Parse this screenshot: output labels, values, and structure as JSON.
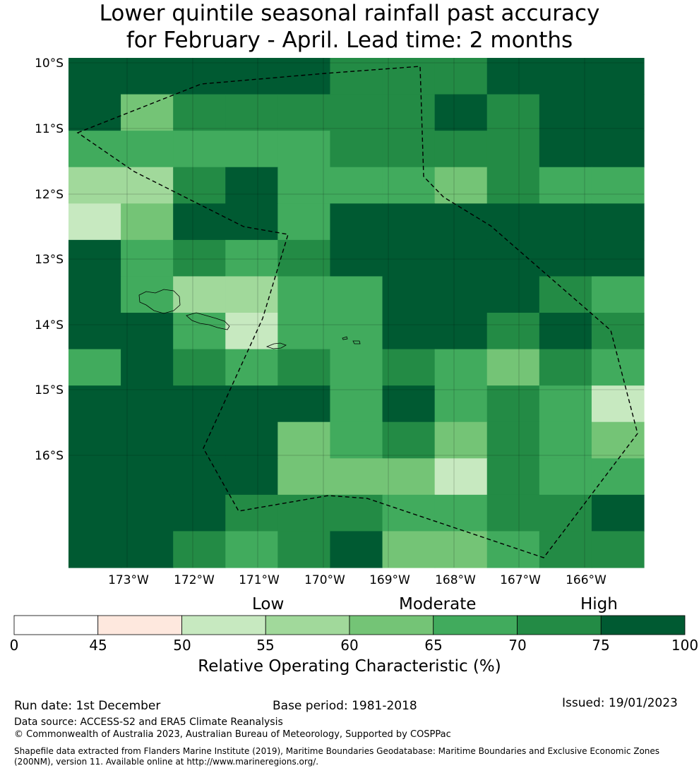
{
  "title": {
    "line1": "Lower quintile seasonal rainfall past accuracy",
    "line2": "for February - April. Lead time: 2 months"
  },
  "map": {
    "lat_labels": [
      "10°S",
      "11°S",
      "12°S",
      "13°S",
      "14°S",
      "15°S",
      "16°S"
    ],
    "lon_labels": [
      "173°W",
      "172°W",
      "171°W",
      "170°W",
      "169°W",
      "168°W",
      "167°W",
      "166°W"
    ],
    "grid": [
      [
        90,
        90,
        90,
        90,
        90,
        72,
        72,
        72,
        90,
        90,
        90
      ],
      [
        90,
        62,
        72,
        72,
        72,
        72,
        72,
        90,
        72,
        90,
        90
      ],
      [
        67,
        67,
        67,
        67,
        67,
        72,
        72,
        72,
        72,
        90,
        90
      ],
      [
        58,
        58,
        72,
        90,
        67,
        67,
        67,
        62,
        72,
        67,
        67
      ],
      [
        53,
        62,
        90,
        90,
        67,
        90,
        90,
        90,
        90,
        90,
        90
      ],
      [
        90,
        67,
        72,
        67,
        72,
        90,
        90,
        90,
        90,
        90,
        90
      ],
      [
        90,
        67,
        58,
        58,
        67,
        67,
        90,
        90,
        90,
        72,
        67
      ],
      [
        90,
        90,
        67,
        53,
        67,
        67,
        90,
        90,
        72,
        90,
        72
      ],
      [
        67,
        90,
        72,
        67,
        72,
        67,
        72,
        67,
        62,
        72,
        67
      ],
      [
        90,
        90,
        90,
        90,
        90,
        67,
        90,
        67,
        72,
        67,
        53
      ],
      [
        90,
        90,
        90,
        90,
        62,
        67,
        72,
        62,
        72,
        67,
        62
      ],
      [
        90,
        90,
        90,
        90,
        62,
        62,
        62,
        53,
        72,
        67,
        67
      ],
      [
        90,
        90,
        90,
        72,
        72,
        72,
        67,
        67,
        72,
        72,
        90
      ],
      [
        90,
        90,
        72,
        67,
        72,
        90,
        62,
        62,
        67,
        72,
        72
      ]
    ]
  },
  "colorbar": {
    "category_labels": [
      "Low",
      "Moderate",
      "High"
    ],
    "ticks": [
      "0",
      "45",
      "50",
      "55",
      "60",
      "65",
      "70",
      "75",
      "100"
    ],
    "colors": [
      "#ffffff",
      "#fee8de",
      "#c7e9c0",
      "#a1d99b",
      "#74c476",
      "#41ab5d",
      "#238b45",
      "#005a32"
    ],
    "title": "Relative Operating Characteristic (%)"
  },
  "footer": {
    "run_date": "Run date: 1st December",
    "base_period": "Base period: 1981-2018",
    "issued": "Issued: 19/01/2023",
    "data_source": "Data source: ACCESS-S2 and ERA5 Climate Reanalysis",
    "copyright": "© Commonwealth of Australia 2023, Australian Bureau of Meteorology, Supported by COSPPac",
    "shapefile_line1": "Shapefile data extracted from Flanders Marine Institute (2019), Maritime Boundaries Geodatabase: Maritime Boundaries and Exclusive Economic Zones",
    "shapefile_line2": "(200NM), version 11. Available online at http://www.marineregions.org/."
  }
}
